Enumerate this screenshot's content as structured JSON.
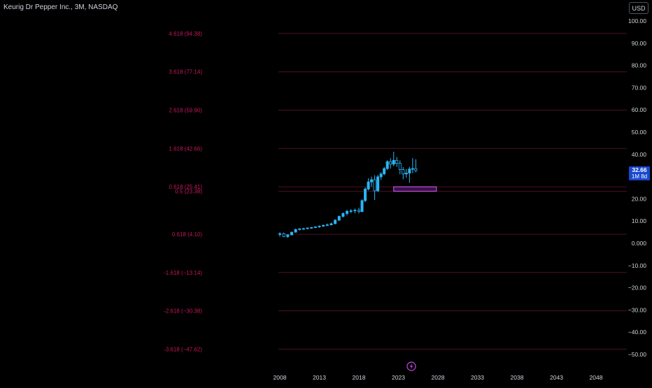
{
  "header": {
    "title": "Keurig Dr Pepper Inc., 3M, NASDAQ",
    "currency_label": "USD"
  },
  "last_price": {
    "value": "32.66",
    "countdown": "1M 8d"
  },
  "colors": {
    "background": "#000000",
    "fib_line": "#4d1122",
    "fib_label": "#c2185b",
    "candle": "#29b6f6",
    "zone_border": "#c04ee0",
    "zone_fill": "#3a1246",
    "last_price_bg": "#1848cc",
    "axis_text": "#d1d4dc"
  },
  "icons": {
    "lightning": "lightning-icon"
  },
  "chart_data": {
    "type": "candlestick",
    "title": "Keurig Dr Pepper Inc., 3M, NASDAQ",
    "ylim": [
      -55,
      105
    ],
    "xlim": [
      2004.8,
      2052.0
    ],
    "y_ticks": [
      "100.00",
      "90.00",
      "80.00",
      "70.00",
      "60.00",
      "50.00",
      "40.00",
      "30.00",
      "20.00",
      "10.00",
      "0.000",
      "−10.00",
      "−20.00",
      "−30.00",
      "−40.00",
      "−50.00"
    ],
    "y_tick_values": [
      100,
      90,
      80,
      70,
      60,
      50,
      40,
      30,
      20,
      10,
      0,
      -10,
      -20,
      -30,
      -40,
      -50
    ],
    "x_ticks": [
      "2008",
      "2013",
      "2018",
      "2023",
      "2028",
      "2033",
      "2038",
      "2043",
      "2048"
    ],
    "x_tick_values": [
      2008,
      2013,
      2018,
      2023,
      2028,
      2033,
      2038,
      2043,
      2048
    ],
    "fib_levels": [
      {
        "label": "4.618 (94.38)",
        "value": 94.38
      },
      {
        "label": "3.618 (77.14)",
        "value": 77.14
      },
      {
        "label": "2.618 (59.90)",
        "value": 59.9
      },
      {
        "label": "1.618 (42.66)",
        "value": 42.66
      },
      {
        "label": "0.618 (25.41)",
        "value": 25.41
      },
      {
        "label": "0.5 (23.38)",
        "value": 23.38
      },
      {
        "label": "0.618 (4.10)",
        "value": 4.1
      },
      {
        "label": "-1.618 (−13.14)",
        "value": -13.14
      },
      {
        "label": "-2.618 (−30.38)",
        "value": -30.38
      },
      {
        "label": "-3.618 (−47.62)",
        "value": -47.62
      }
    ],
    "fib_x_start": 2007.8,
    "zone": {
      "x0": 2022.4,
      "x1": 2027.8,
      "y0": 23.4,
      "y1": 25.4
    },
    "candles": [
      {
        "t": 2008.0,
        "o": 4.0,
        "h": 5.0,
        "l": 3.0,
        "c": 4.3
      },
      {
        "t": 2008.5,
        "o": 4.3,
        "h": 4.8,
        "l": 2.8,
        "c": 3.0
      },
      {
        "t": 2009.0,
        "o": 3.0,
        "h": 4.0,
        "l": 2.4,
        "c": 3.8
      },
      {
        "t": 2009.5,
        "o": 3.8,
        "h": 5.2,
        "l": 3.5,
        "c": 5.0
      },
      {
        "t": 2010.0,
        "o": 5.0,
        "h": 6.6,
        "l": 4.8,
        "c": 6.2
      },
      {
        "t": 2010.5,
        "o": 6.2,
        "h": 6.8,
        "l": 5.8,
        "c": 6.5
      },
      {
        "t": 2011.0,
        "o": 6.5,
        "h": 7.0,
        "l": 6.2,
        "c": 6.6
      },
      {
        "t": 2011.5,
        "o": 6.6,
        "h": 7.1,
        "l": 6.3,
        "c": 6.9
      },
      {
        "t": 2012.0,
        "o": 6.9,
        "h": 7.3,
        "l": 6.6,
        "c": 7.1
      },
      {
        "t": 2012.5,
        "o": 7.1,
        "h": 7.6,
        "l": 6.8,
        "c": 7.4
      },
      {
        "t": 2013.0,
        "o": 7.4,
        "h": 8.0,
        "l": 7.0,
        "c": 7.7
      },
      {
        "t": 2013.5,
        "o": 7.7,
        "h": 8.4,
        "l": 7.4,
        "c": 8.1
      },
      {
        "t": 2014.0,
        "o": 8.1,
        "h": 8.9,
        "l": 7.8,
        "c": 8.3
      },
      {
        "t": 2014.5,
        "o": 8.3,
        "h": 9.3,
        "l": 8.0,
        "c": 8.8
      },
      {
        "t": 2015.0,
        "o": 8.8,
        "h": 10.8,
        "l": 8.6,
        "c": 10.4
      },
      {
        "t": 2015.5,
        "o": 10.4,
        "h": 12.5,
        "l": 10.0,
        "c": 12.1
      },
      {
        "t": 2016.0,
        "o": 12.1,
        "h": 13.9,
        "l": 11.6,
        "c": 13.4
      },
      {
        "t": 2016.5,
        "o": 13.4,
        "h": 15.0,
        "l": 12.5,
        "c": 14.4
      },
      {
        "t": 2017.0,
        "o": 14.4,
        "h": 15.4,
        "l": 13.6,
        "c": 14.6
      },
      {
        "t": 2017.5,
        "o": 14.6,
        "h": 15.6,
        "l": 13.5,
        "c": 14.9
      },
      {
        "t": 2018.0,
        "o": 14.9,
        "h": 16.0,
        "l": 13.4,
        "c": 14.3
      },
      {
        "t": 2018.4,
        "o": 14.3,
        "h": 19.8,
        "l": 14.0,
        "c": 19.2
      },
      {
        "t": 2018.8,
        "o": 19.2,
        "h": 25.2,
        "l": 18.5,
        "c": 24.4
      },
      {
        "t": 2019.2,
        "o": 24.4,
        "h": 29.3,
        "l": 23.8,
        "c": 27.6
      },
      {
        "t": 2019.6,
        "o": 27.6,
        "h": 30.0,
        "l": 25.5,
        "c": 28.6
      },
      {
        "t": 2020.0,
        "o": 28.6,
        "h": 30.6,
        "l": 19.5,
        "c": 23.6
      },
      {
        "t": 2020.4,
        "o": 23.6,
        "h": 30.8,
        "l": 23.0,
        "c": 29.9
      },
      {
        "t": 2020.8,
        "o": 29.9,
        "h": 32.0,
        "l": 28.5,
        "c": 31.2
      },
      {
        "t": 2021.2,
        "o": 31.2,
        "h": 34.4,
        "l": 30.6,
        "c": 33.6
      },
      {
        "t": 2021.6,
        "o": 33.6,
        "h": 37.4,
        "l": 33.0,
        "c": 36.7
      },
      {
        "t": 2022.0,
        "o": 36.7,
        "h": 38.3,
        "l": 33.6,
        "c": 35.6
      },
      {
        "t": 2022.4,
        "o": 35.6,
        "h": 41.2,
        "l": 34.7,
        "c": 37.3
      },
      {
        "t": 2022.8,
        "o": 37.3,
        "h": 38.8,
        "l": 34.4,
        "c": 36.0
      },
      {
        "t": 2023.2,
        "o": 36.0,
        "h": 37.3,
        "l": 31.0,
        "c": 33.2
      },
      {
        "t": 2023.6,
        "o": 33.2,
        "h": 34.3,
        "l": 28.8,
        "c": 31.2
      },
      {
        "t": 2024.0,
        "o": 31.2,
        "h": 33.4,
        "l": 29.5,
        "c": 31.6
      },
      {
        "t": 2024.4,
        "o": 31.6,
        "h": 34.4,
        "l": 27.2,
        "c": 33.4
      },
      {
        "t": 2024.8,
        "o": 33.4,
        "h": 38.3,
        "l": 31.5,
        "c": 33.6
      },
      {
        "t": 2025.2,
        "o": 33.6,
        "h": 37.8,
        "l": 31.9,
        "c": 32.66
      }
    ]
  }
}
